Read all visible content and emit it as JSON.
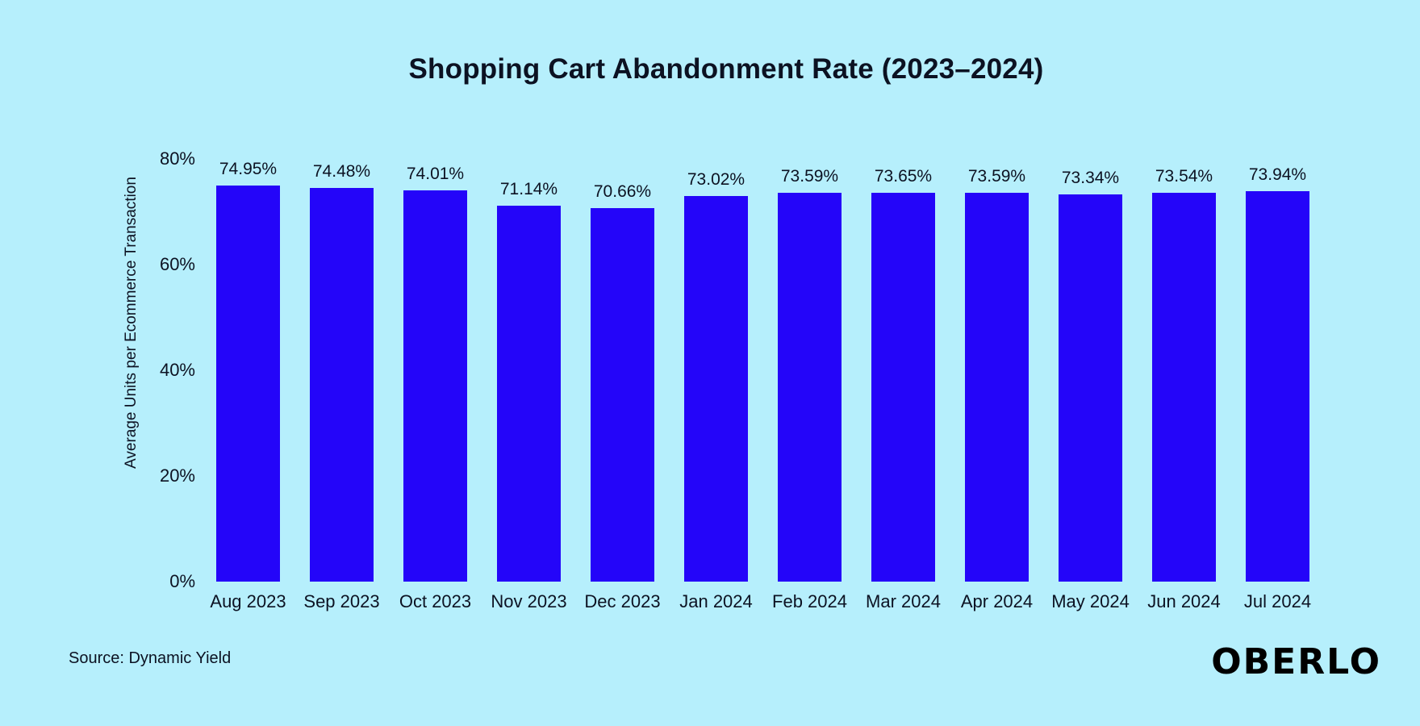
{
  "colors": {
    "background": "#B6EFFC",
    "bar": "#2405F9",
    "text": "#0C1222",
    "logo": "#000000"
  },
  "chart_data": {
    "type": "bar",
    "title": "Shopping Cart Abandonment Rate (2023–2024)",
    "xlabel": "",
    "ylabel": "Average Units per Ecommerce Transaction",
    "categories": [
      "Aug 2023",
      "Sep 2023",
      "Oct 2023",
      "Nov 2023",
      "Dec 2023",
      "Jan 2024",
      "Feb 2024",
      "Mar 2024",
      "Apr 2024",
      "May 2024",
      "Jun 2024",
      "Jul 2024"
    ],
    "values": [
      74.95,
      74.48,
      74.01,
      71.14,
      70.66,
      73.02,
      73.59,
      73.65,
      73.59,
      73.34,
      73.54,
      73.94
    ],
    "data_labels": [
      "74.95%",
      "74.48%",
      "74.01%",
      "71.14%",
      "70.66%",
      "73.02%",
      "73.59%",
      "73.65%",
      "73.59%",
      "73.34%",
      "73.54%",
      "73.94%"
    ],
    "y_ticks": [
      {
        "value": 0,
        "label": "0%"
      },
      {
        "value": 20,
        "label": "20%"
      },
      {
        "value": 40,
        "label": "40%"
      },
      {
        "value": 60,
        "label": "60%"
      },
      {
        "value": 80,
        "label": "80%"
      }
    ],
    "ylim": [
      0,
      80
    ],
    "grid": false,
    "legend": false
  },
  "footer": {
    "source": "Source: Dynamic Yield",
    "logo": "OBERLO"
  }
}
